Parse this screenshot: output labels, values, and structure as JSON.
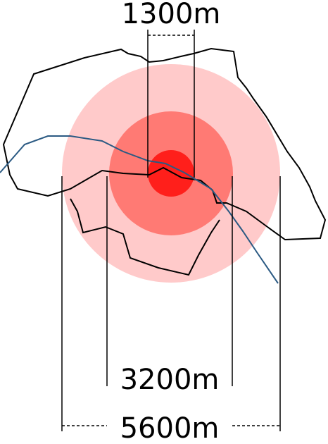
{
  "labels": {
    "inner": "1300m",
    "middle": "3200m",
    "outer": "5600m"
  },
  "colors": {
    "outer_zone": "#ffcaca",
    "middle_zone": "#ff7a74",
    "inner_zone": "#ff1f1b",
    "boundary": "#000000",
    "river": "#2b5a83",
    "measure": "#000000"
  }
}
